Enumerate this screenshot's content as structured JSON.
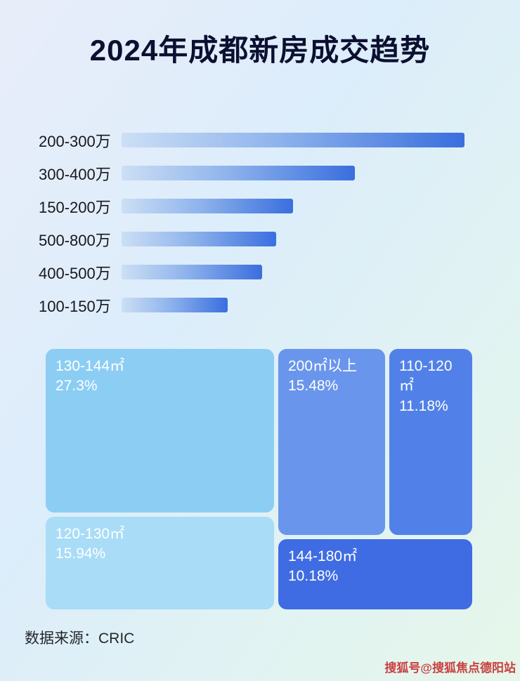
{
  "page": {
    "title": "2024年成都新房成交趋势",
    "source": "数据来源：CRIC",
    "watermark": "搜狐号@搜狐焦点德阳站"
  },
  "chart_data": [
    {
      "type": "bar",
      "orientation": "horizontal",
      "title": "",
      "categories": [
        "200-300万",
        "300-400万",
        "150-200万",
        "500-800万",
        "400-500万",
        "100-150万"
      ],
      "values": [
        100,
        68,
        50,
        45,
        41,
        31
      ],
      "value_unit": "relative-length-percent-of-longest-bar",
      "bar_gradient": [
        "#ccdff5",
        "#3a6ede"
      ],
      "grid": false,
      "legend": "none"
    },
    {
      "type": "treemap",
      "title": "",
      "items": [
        {
          "label": "130-144㎡",
          "value_pct": 27.3,
          "value_label": "27.3%",
          "color": "#8ccdf4"
        },
        {
          "label": "120-130㎡",
          "value_pct": 15.94,
          "value_label": "15.94%",
          "color": "#a9dcf7"
        },
        {
          "label": "200㎡以上",
          "value_pct": 15.48,
          "value_label": "15.48%",
          "color": "#6a95ec"
        },
        {
          "label": "110-120㎡",
          "value_pct": 11.18,
          "value_label": "11.18%",
          "color": "#5181e8"
        },
        {
          "label": "144-180㎡",
          "value_pct": 10.18,
          "value_label": "10.18%",
          "color": "#3f6ce2"
        }
      ]
    }
  ]
}
